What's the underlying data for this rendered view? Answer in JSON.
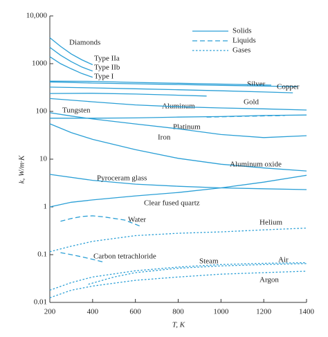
{
  "chart_data": {
    "type": "line",
    "log": true,
    "grid": false,
    "x_label": "T, K",
    "y_label": "k, W/m·K",
    "xlim": [
      200,
      1400
    ],
    "xticks": [
      200,
      400,
      600,
      800,
      1000,
      1200,
      1400
    ],
    "ylim": [
      0.01,
      10000
    ],
    "yticks": [
      {
        "value": 10000,
        "label": "10,000"
      },
      1000,
      100,
      10,
      1,
      0.1,
      0.01
    ],
    "annotations": [
      "Diamonds"
    ],
    "legend_location": "upper right",
    "legend": [
      {
        "label": "Solids",
        "line_style": "solid"
      },
      {
        "label": "Liquids",
        "line_style": "dashed"
      },
      {
        "label": "Gases",
        "line_style": "dotted"
      }
    ],
    "series": [
      {
        "name": "Type IIa",
        "color": "#2a9fd6",
        "line_style": "solid",
        "x": [
          200,
          250,
          300,
          350,
          400
        ],
        "values": [
          3500,
          2300,
          1600,
          1200,
          950
        ]
      },
      {
        "name": "Type IIb",
        "color": "#2a9fd6",
        "line_style": "solid",
        "x": [
          200,
          250,
          300,
          350,
          400
        ],
        "values": [
          2200,
          1500,
          1100,
          850,
          700
        ]
      },
      {
        "name": "Type I",
        "color": "#2a9fd6",
        "line_style": "solid",
        "x": [
          200,
          250,
          300,
          350,
          400
        ],
        "values": [
          1400,
          1000,
          780,
          620,
          520
        ]
      },
      {
        "name": "Silver",
        "color": "#2a9fd6",
        "line_style": "solid",
        "x": [
          200,
          400,
          600,
          800,
          1000,
          1200,
          1235
        ],
        "values": [
          430,
          425,
          405,
          389,
          374,
          358,
          355
        ]
      },
      {
        "name": "Copper",
        "color": "#2a9fd6",
        "line_style": "solid",
        "x": [
          200,
          400,
          600,
          800,
          1000,
          1200,
          1358
        ],
        "values": [
          413,
          393,
          379,
          366,
          352,
          339,
          330
        ]
      },
      {
        "name": "Gold",
        "color": "#2a9fd6",
        "line_style": "solid",
        "x": [
          200,
          400,
          600,
          800,
          1000,
          1200,
          1336
        ],
        "values": [
          323,
          311,
          298,
          284,
          270,
          255,
          245
        ]
      },
      {
        "name": "Aluminum",
        "color": "#2a9fd6",
        "line_style": "solid",
        "x": [
          200,
          400,
          600,
          800,
          933
        ],
        "values": [
          237,
          240,
          231,
          218,
          210
        ]
      },
      {
        "color": "#2a9fd6",
        "line_style": "dashed",
        "x": [
          933,
          1100,
          1300
        ],
        "values": [
          76,
          79,
          82
        ]
      },
      {
        "name": "Tungsten",
        "color": "#2a9fd6",
        "line_style": "solid",
        "x": [
          200,
          400,
          600,
          800,
          1000,
          1200,
          1400
        ],
        "values": [
          186,
          159,
          137,
          125,
          118,
          113,
          107
        ]
      },
      {
        "name": "Platinum",
        "color": "#2a9fd6",
        "line_style": "solid",
        "x": [
          200,
          400,
          600,
          800,
          1000,
          1200,
          1400
        ],
        "values": [
          72,
          72,
          73,
          76,
          78,
          82,
          84
        ]
      },
      {
        "name": "Iron",
        "color": "#2a9fd6",
        "line_style": "solid",
        "x": [
          200,
          300,
          400,
          600,
          800,
          1000,
          1200,
          1400
        ],
        "values": [
          94,
          80,
          69.5,
          54.7,
          43.3,
          32.8,
          28.3,
          31
        ]
      },
      {
        "name": "Aluminum oxide",
        "color": "#2a9fd6",
        "line_style": "solid",
        "x": [
          200,
          300,
          400,
          600,
          800,
          1000,
          1200,
          1400
        ],
        "values": [
          55,
          36,
          26,
          15.8,
          10.4,
          7.85,
          6.55,
          5.66
        ]
      },
      {
        "name": "Pyroceram glass",
        "color": "#2a9fd6",
        "line_style": "solid",
        "x": [
          200,
          400,
          600,
          800,
          1000,
          1200,
          1400
        ],
        "values": [
          4.8,
          3.6,
          3.0,
          2.7,
          2.5,
          2.4,
          2.3
        ]
      },
      {
        "name": "Clear fused quartz",
        "color": "#2a9fd6",
        "line_style": "solid",
        "x": [
          200,
          300,
          400,
          600,
          800,
          1000,
          1200,
          1400
        ],
        "values": [
          1.0,
          1.25,
          1.4,
          1.7,
          2.0,
          2.5,
          3.3,
          4.6
        ]
      },
      {
        "name": "Water",
        "color": "#2a9fd6",
        "line_style": "dashed",
        "x": [
          250,
          300,
          350,
          400,
          450,
          550,
          620
        ],
        "values": [
          0.5,
          0.57,
          0.63,
          0.65,
          0.62,
          0.53,
          0.4
        ]
      },
      {
        "name": "Helium",
        "color": "#2a9fd6",
        "line_style": "dotted",
        "x": [
          200,
          300,
          400,
          600,
          800,
          1000,
          1200,
          1400
        ],
        "values": [
          0.115,
          0.15,
          0.19,
          0.25,
          0.28,
          0.3,
          0.33,
          0.36
        ]
      },
      {
        "name": "Carbon tetrachloride",
        "color": "#2a9fd6",
        "line_style": "dashed",
        "x": [
          250,
          300,
          350,
          400,
          450
        ],
        "values": [
          0.11,
          0.1,
          0.09,
          0.08,
          0.07
        ]
      },
      {
        "name": "Steam",
        "color": "#2a9fd6",
        "line_style": "dotted",
        "x": [
          380,
          500,
          600,
          800,
          1000,
          1200,
          1400
        ],
        "values": [
          0.024,
          0.034,
          0.042,
          0.052,
          0.058,
          0.062,
          0.065
        ]
      },
      {
        "name": "Air",
        "color": "#2a9fd6",
        "line_style": "dotted",
        "x": [
          200,
          300,
          400,
          600,
          800,
          1000,
          1200,
          1400
        ],
        "values": [
          0.018,
          0.026,
          0.034,
          0.046,
          0.055,
          0.062,
          0.066,
          0.068
        ]
      },
      {
        "name": "Argon",
        "color": "#2a9fd6",
        "line_style": "dotted",
        "x": [
          200,
          300,
          400,
          600,
          800,
          1000,
          1200,
          1400
        ],
        "values": [
          0.0125,
          0.018,
          0.022,
          0.029,
          0.034,
          0.039,
          0.042,
          0.045
        ]
      }
    ]
  }
}
